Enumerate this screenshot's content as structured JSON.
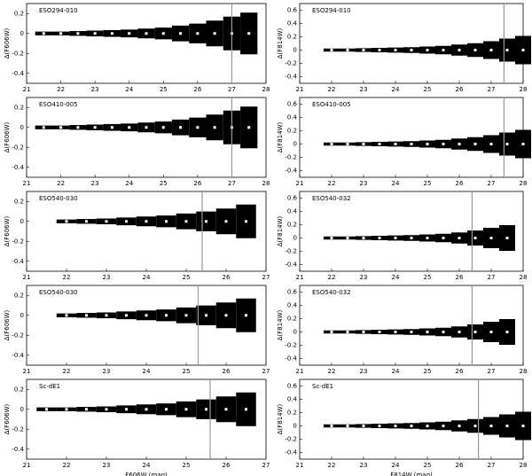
{
  "chart_data": [
    {
      "type": "errorbar",
      "title": "ESO294-010",
      "ylabel": "Δ(F606W)",
      "xlim": [
        21,
        28
      ],
      "xticks": [
        21,
        22,
        23,
        24,
        25,
        26,
        27,
        28
      ],
      "ylim": [
        -0.5,
        0.3
      ],
      "yticks": [
        -0.4,
        -0.2,
        0,
        0.2
      ],
      "limit": 27.0,
      "x": [
        21.5,
        22,
        22.5,
        23,
        23.5,
        24,
        24.5,
        25,
        25.5,
        26,
        26.5,
        27,
        27.5
      ],
      "values": [
        0,
        0,
        0,
        0,
        0,
        0,
        0,
        0,
        0,
        0,
        0,
        0,
        0
      ],
      "errors": [
        0.01,
        0.01,
        0.015,
        0.02,
        0.025,
        0.03,
        0.04,
        0.05,
        0.07,
        0.09,
        0.12,
        0.16,
        0.2
      ]
    },
    {
      "type": "errorbar",
      "title": "ESO294-010",
      "ylabel": "Δ(F814W)",
      "xlim": [
        21,
        28
      ],
      "xticks": [
        21,
        22,
        23,
        24,
        25,
        26,
        27,
        28
      ],
      "ylim": [
        -0.5,
        0.7
      ],
      "yticks": [
        -0.4,
        -0.2,
        0,
        0.2,
        0.4,
        0.6
      ],
      "limit": 27.4,
      "x": [
        22,
        22.5,
        23,
        23.5,
        24,
        24.5,
        25,
        25.5,
        26,
        26.5,
        27,
        27.5,
        28
      ],
      "values": [
        0,
        0,
        0,
        0,
        0,
        0,
        0,
        0,
        0,
        0,
        0,
        0,
        0
      ],
      "errors": [
        0.01,
        0.01,
        0.015,
        0.02,
        0.025,
        0.03,
        0.04,
        0.05,
        0.07,
        0.09,
        0.12,
        0.16,
        0.2
      ]
    },
    {
      "type": "errorbar",
      "title": "ESO410-005",
      "ylabel": "Δ(F606W)",
      "xlim": [
        21,
        28
      ],
      "xticks": [
        21,
        22,
        23,
        24,
        25,
        26,
        27,
        28
      ],
      "ylim": [
        -0.5,
        0.3
      ],
      "yticks": [
        -0.4,
        -0.2,
        0,
        0.2
      ],
      "limit": 27.0,
      "x": [
        21.5,
        22,
        22.5,
        23,
        23.5,
        24,
        24.5,
        25,
        25.5,
        26,
        26.5,
        27,
        27.5
      ],
      "values": [
        0,
        0,
        0,
        0,
        0,
        0,
        0,
        0,
        0,
        0,
        0,
        0,
        0
      ],
      "errors": [
        0.01,
        0.01,
        0.015,
        0.02,
        0.025,
        0.03,
        0.04,
        0.05,
        0.07,
        0.09,
        0.12,
        0.16,
        0.2
      ]
    },
    {
      "type": "errorbar",
      "title": "ESO410-005",
      "ylabel": "Δ(F814W)",
      "xlim": [
        21,
        28
      ],
      "xticks": [
        21,
        22,
        23,
        24,
        25,
        26,
        27,
        28
      ],
      "ylim": [
        -0.5,
        0.7
      ],
      "yticks": [
        -0.4,
        -0.2,
        0,
        0.2,
        0.4,
        0.6
      ],
      "limit": 27.4,
      "x": [
        22,
        22.5,
        23,
        23.5,
        24,
        24.5,
        25,
        25.5,
        26,
        26.5,
        27,
        27.5,
        28
      ],
      "values": [
        0,
        0,
        0,
        0,
        0,
        0,
        0,
        0,
        0,
        0,
        0,
        0,
        0
      ],
      "errors": [
        0.01,
        0.01,
        0.015,
        0.02,
        0.025,
        0.03,
        0.04,
        0.05,
        0.07,
        0.09,
        0.12,
        0.16,
        0.2
      ]
    },
    {
      "type": "errorbar",
      "title": "ESO540-030",
      "ylabel": "Δ(F606W)",
      "xlim": [
        21,
        27
      ],
      "xticks": [
        21,
        22,
        23,
        24,
        25,
        26,
        27
      ],
      "ylim": [
        -0.5,
        0.3
      ],
      "yticks": [
        -0.4,
        -0.2,
        0,
        0.2
      ],
      "limit": 25.4,
      "x": [
        22,
        22.5,
        23,
        23.5,
        24,
        24.5,
        25,
        25.5,
        26,
        26.5
      ],
      "values": [
        0,
        0,
        0,
        0,
        0,
        0,
        0,
        0,
        0,
        0
      ],
      "errors": [
        0.01,
        0.015,
        0.02,
        0.03,
        0.04,
        0.05,
        0.07,
        0.09,
        0.12,
        0.16
      ]
    },
    {
      "type": "errorbar",
      "title": "ESO540-032",
      "ylabel": "Δ(F814W)",
      "xlim": [
        21,
        28
      ],
      "xticks": [
        21,
        22,
        23,
        24,
        25,
        26,
        27,
        28
      ],
      "ylim": [
        -0.5,
        0.7
      ],
      "yticks": [
        -0.4,
        -0.2,
        0,
        0.2,
        0.4,
        0.6
      ],
      "limit": 26.4,
      "x": [
        22,
        22.5,
        23,
        23.5,
        24,
        24.5,
        25,
        25.5,
        26,
        26.5,
        27,
        27.5
      ],
      "values": [
        0,
        0,
        0,
        0,
        0,
        0,
        0,
        0,
        0,
        0,
        0,
        0
      ],
      "errors": [
        0.01,
        0.01,
        0.015,
        0.02,
        0.025,
        0.03,
        0.04,
        0.05,
        0.07,
        0.1,
        0.14,
        0.18
      ]
    },
    {
      "type": "errorbar",
      "title": "ESO540-030",
      "ylabel": "Δ(F606W)",
      "xlim": [
        21,
        27
      ],
      "xticks": [
        21,
        22,
        23,
        24,
        25,
        26,
        27
      ],
      "ylim": [
        -0.5,
        0.3
      ],
      "yticks": [
        -0.4,
        -0.2,
        0,
        0.2
      ],
      "limit": 25.3,
      "x": [
        22,
        22.5,
        23,
        23.5,
        24,
        24.5,
        25,
        25.5,
        26,
        26.5
      ],
      "values": [
        0,
        0,
        0,
        0,
        0,
        0,
        0,
        0,
        0,
        0
      ],
      "errors": [
        0.01,
        0.015,
        0.02,
        0.03,
        0.04,
        0.05,
        0.07,
        0.09,
        0.12,
        0.16
      ]
    },
    {
      "type": "errorbar",
      "title": "ESO540-032",
      "ylabel": "Δ(F814W)",
      "xlim": [
        21,
        28
      ],
      "xticks": [
        21,
        22,
        23,
        24,
        25,
        26,
        27,
        28
      ],
      "ylim": [
        -0.5,
        0.7
      ],
      "yticks": [
        -0.4,
        -0.2,
        0,
        0.2,
        0.4,
        0.6
      ],
      "limit": 26.4,
      "x": [
        22,
        22.5,
        23,
        23.5,
        24,
        24.5,
        25,
        25.5,
        26,
        26.5,
        27,
        27.5
      ],
      "values": [
        0,
        0,
        0,
        0,
        0,
        0,
        0,
        0,
        0,
        0,
        0,
        0
      ],
      "errors": [
        0.01,
        0.01,
        0.015,
        0.02,
        0.025,
        0.03,
        0.04,
        0.05,
        0.07,
        0.1,
        0.14,
        0.18
      ]
    },
    {
      "type": "errorbar",
      "title": "Sc-dE1",
      "ylabel": "Δ(F606W)",
      "xlabel": "F606W (mag)",
      "xlim": [
        21,
        27
      ],
      "xticks": [
        21,
        22,
        23,
        24,
        25,
        26,
        27
      ],
      "ylim": [
        -0.5,
        0.3
      ],
      "yticks": [
        -0.4,
        -0.2,
        0,
        0.2
      ],
      "limit": 25.6,
      "x": [
        21.5,
        22,
        22.5,
        23,
        23.5,
        24,
        24.5,
        25,
        25.5,
        26,
        26.5
      ],
      "values": [
        0,
        0,
        0,
        0,
        0,
        0,
        0,
        0,
        0,
        0,
        0
      ],
      "errors": [
        0.01,
        0.01,
        0.015,
        0.02,
        0.03,
        0.04,
        0.05,
        0.07,
        0.09,
        0.12,
        0.16
      ]
    },
    {
      "type": "errorbar",
      "title": "Sc-dE1",
      "ylabel": "Δ(F814W)",
      "xlabel": "F814W (mag)",
      "xlim": [
        21,
        28
      ],
      "xticks": [
        21,
        22,
        23,
        24,
        25,
        26,
        27,
        28
      ],
      "ylim": [
        -0.5,
        0.7
      ],
      "yticks": [
        -0.4,
        -0.2,
        0,
        0.2,
        0.4,
        0.6
      ],
      "limit": 26.6,
      "x": [
        22,
        22.5,
        23,
        23.5,
        24,
        24.5,
        25,
        25.5,
        26,
        26.5,
        27,
        27.5,
        28
      ],
      "values": [
        0,
        0,
        0,
        0,
        0,
        0,
        0,
        0,
        0,
        0,
        0,
        0,
        0
      ],
      "errors": [
        0.01,
        0.01,
        0.015,
        0.02,
        0.025,
        0.03,
        0.04,
        0.05,
        0.07,
        0.09,
        0.12,
        0.16,
        0.2
      ]
    }
  ]
}
